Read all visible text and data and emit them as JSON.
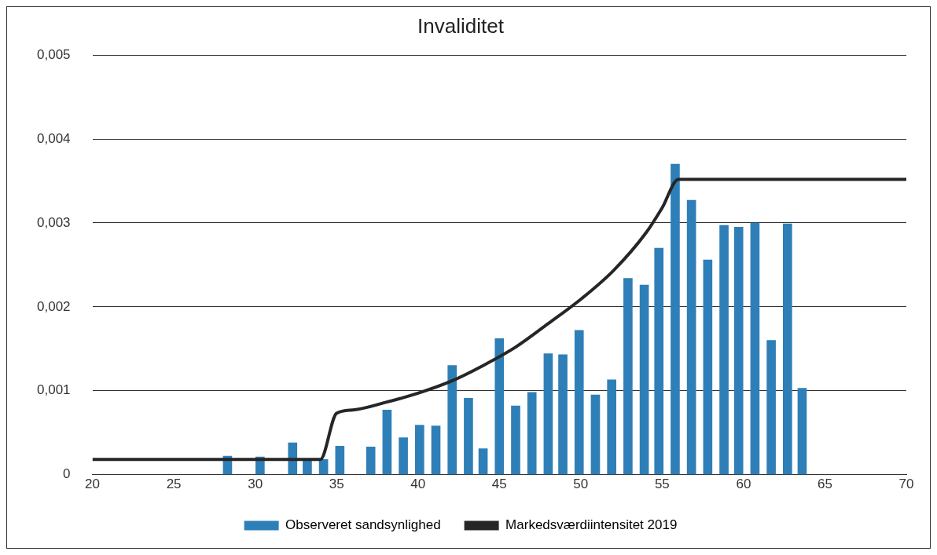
{
  "chart_data": {
    "type": "bar",
    "title": "Invaliditet",
    "xlim": [
      20,
      70
    ],
    "xticks": [
      20,
      25,
      30,
      35,
      40,
      45,
      50,
      55,
      60,
      65,
      70
    ],
    "ylim": [
      0,
      0.005
    ],
    "yticks": [
      {
        "value": 0,
        "label": "0"
      },
      {
        "value": 0.001,
        "label": "0,001"
      },
      {
        "value": 0.002,
        "label": "0,002"
      },
      {
        "value": 0.003,
        "label": "0,003"
      },
      {
        "value": 0.004,
        "label": "0,004"
      },
      {
        "value": 0.005,
        "label": "0,005"
      }
    ],
    "grid": "y",
    "legend": "bottom",
    "series": [
      {
        "name": "Observeret sandsynlighed",
        "color": "#2e7fb8",
        "x": [
          28.3,
          30.3,
          32.3,
          33.2,
          34.2,
          35.2,
          37.1,
          38.1,
          39.1,
          40.1,
          41.1,
          42.1,
          43.1,
          44,
          45,
          46,
          47,
          48,
          48.9,
          49.9,
          50.9,
          51.9,
          52.9,
          53.9,
          54.8,
          55.8,
          56.8,
          57.8,
          58.8,
          59.7,
          60.7,
          61.7,
          62.7,
          63.6
        ],
        "values": [
          0.00022,
          0.00021,
          0.00038,
          0.00017,
          0.00018,
          0.00034,
          0.00033,
          0.00077,
          0.00044,
          0.00059,
          0.00058,
          0.0013,
          0.00091,
          0.00031,
          0.00162,
          0.00082,
          0.00098,
          0.00144,
          0.00143,
          0.00172,
          0.00095,
          0.00113,
          0.00234,
          0.00226,
          0.0027,
          0.0037,
          0.00327,
          0.00256,
          0.00297,
          0.00295,
          0.003,
          0.0016,
          0.00299,
          0.00103
        ]
      },
      {
        "name": "Markedsværdiintensitet 2019",
        "type": "line",
        "color": "#262626",
        "x": [
          20,
          34,
          35,
          36,
          38,
          40,
          42,
          44,
          46,
          48,
          50,
          52,
          54,
          55,
          56,
          70
        ],
        "values": [
          0.00018,
          0.00018,
          0.00073,
          0.00077,
          0.00086,
          0.00097,
          0.00111,
          0.0013,
          0.00152,
          0.0018,
          0.00209,
          0.00243,
          0.00288,
          0.00318,
          0.00352,
          0.00352
        ]
      }
    ]
  }
}
